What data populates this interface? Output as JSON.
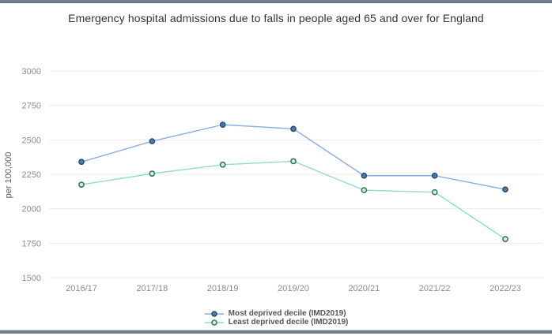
{
  "panel": {
    "border_color": "#6f7e8a",
    "background": "#ffffff"
  },
  "chart_data": {
    "type": "line",
    "title": "Emergency hospital admissions due to falls in people aged 65 and over for England",
    "xlabel": "",
    "ylabel": "per 100,000",
    "categories": [
      "2016/17",
      "2017/18",
      "2018/19",
      "2019/20",
      "2020/21",
      "2021/22",
      "2022/23"
    ],
    "series": [
      {
        "name": "Most deprived decile (IMD2019)",
        "values": [
          2340,
          2490,
          2610,
          2580,
          2240,
          2240,
          2140
        ],
        "line_color": "#8aaede",
        "marker_fill": "#4a7cb0",
        "marker_stroke": "#2c4d6e"
      },
      {
        "name": "Least deprived decile (IMD2019)",
        "values": [
          2175,
          2255,
          2320,
          2345,
          2135,
          2120,
          1780
        ],
        "line_color": "#8edccb",
        "marker_fill": "#d6f0e8",
        "marker_stroke": "#2f6f5f"
      }
    ],
    "ylim": [
      1500,
      3000
    ],
    "yticks": [
      3000,
      2750,
      2500,
      2250,
      2000,
      1750,
      1500
    ],
    "grid": true,
    "legend_position": "bottom",
    "gridline_color": "#ececec",
    "tick_label_color": "#8c8c8c",
    "axis_label_color": "#595959",
    "title_color": "#333333"
  }
}
